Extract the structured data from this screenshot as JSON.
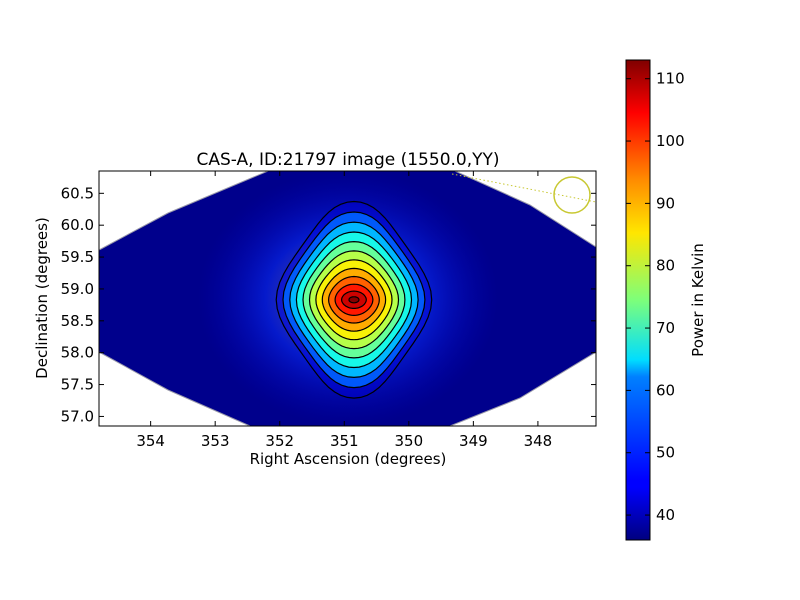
{
  "chart_data": {
    "type": "heatmap",
    "title": "CAS-A, ID:21797 image (1550.0,YY)",
    "xlabel": "Right Ascension (degrees)",
    "ylabel": "Declination (degrees)",
    "xlim": [
      354.8,
      347.1
    ],
    "ylim": [
      56.85,
      60.85
    ],
    "x_ticks": [
      "354",
      "353",
      "352",
      "351",
      "350",
      "349",
      "348"
    ],
    "y_ticks": [
      "57.0",
      "57.5",
      "58.0",
      "58.5",
      "59.0",
      "59.5",
      "60.0",
      "60.5"
    ],
    "colorbar": {
      "label": "Power in Kelvin",
      "range": [
        36,
        113
      ],
      "ticks": [
        "40",
        "50",
        "60",
        "70",
        "80",
        "90",
        "100",
        "110"
      ],
      "colormap": "jet"
    },
    "peak": {
      "ra": 350.85,
      "dec": 58.83,
      "value": 113
    },
    "background_level": 38,
    "contours": 12,
    "beam": {
      "ra": 347.45,
      "dec": 60.45,
      "color": "#c8c832"
    },
    "grid": false
  }
}
